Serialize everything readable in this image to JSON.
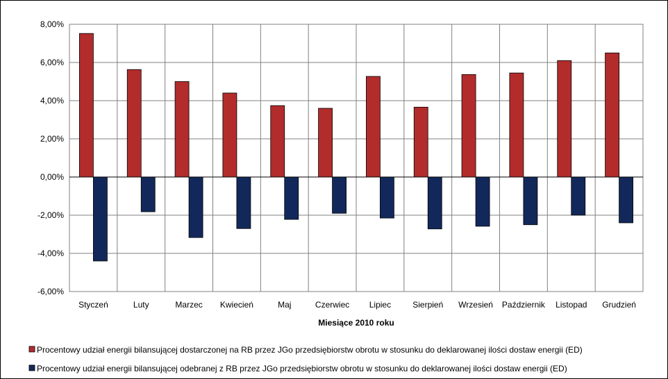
{
  "chart_data": {
    "type": "bar",
    "categories": [
      "Styczeń",
      "Luty",
      "Marzec",
      "Kwiecień",
      "Maj",
      "Czerwiec",
      "Lipiec",
      "Sierpień",
      "Wrzesień",
      "Październik",
      "Listopad",
      "Grudzień"
    ],
    "series": [
      {
        "name": "Procentowy udział energii bilansującej dostarczonej na RB przez JGo przedsiębiorstw obrotu w stosunku do deklarowanej ilości dostaw energii (ED)",
        "color": "#b22c2c",
        "values": [
          7.52,
          5.63,
          5.0,
          4.4,
          3.74,
          3.6,
          5.27,
          3.66,
          5.37,
          5.45,
          6.1,
          6.5
        ]
      },
      {
        "name": "Procentowy udział energii bilansującej odebranej z RB przez JGo przedsiębiorstw obrotu w stosunku do deklarowanej ilości dostaw energii (ED)",
        "color": "#13285a",
        "values": [
          -4.4,
          -1.82,
          -3.17,
          -2.7,
          -2.22,
          -1.9,
          -2.15,
          -2.72,
          -2.58,
          -2.5,
          -2.0,
          -2.4
        ]
      }
    ],
    "title": "",
    "xlabel": "Miesiące 2010 roku",
    "ylabel": "",
    "ylim": [
      -6,
      8
    ],
    "yticks": [
      "8,00%",
      "6,00%",
      "4,00%",
      "2,00%",
      "0,00%",
      "-2,00%",
      "-4,00%",
      "-6,00%"
    ],
    "ytick_values": [
      8,
      6,
      4,
      2,
      0,
      -2,
      -4,
      -6
    ],
    "grid": true,
    "legend_position": "bottom"
  }
}
